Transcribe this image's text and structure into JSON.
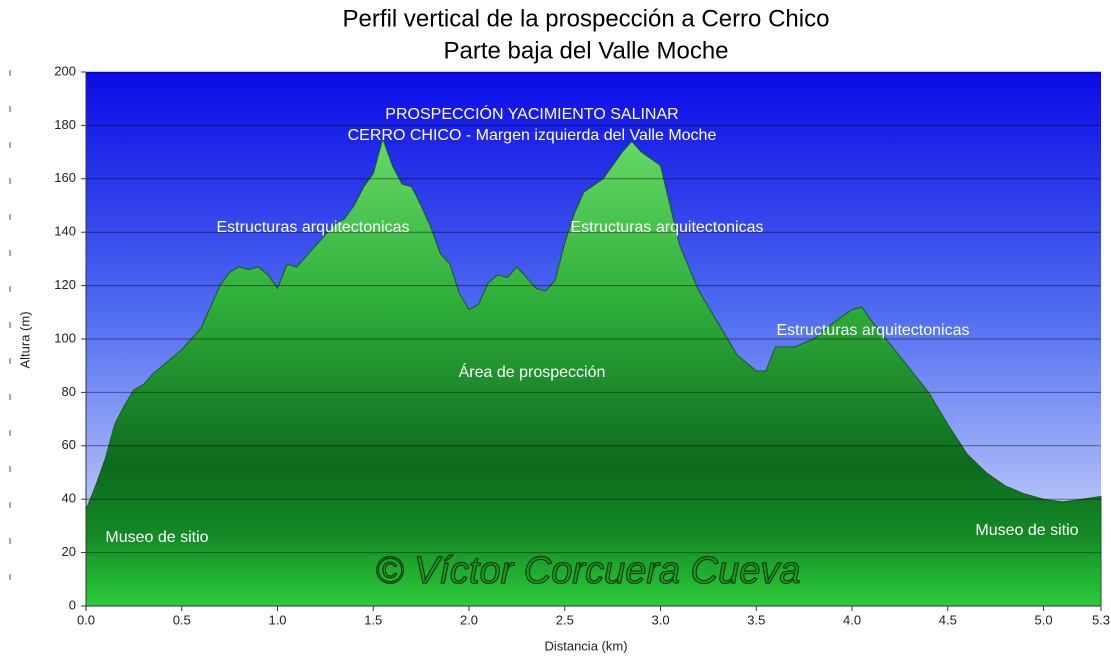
{
  "chart_data": {
    "type": "area",
    "title": "Perfil vertical de la prospección a Cerro Chico",
    "subtitle": "Parte baja del Valle Moche",
    "x_label": "Distancia   (km)",
    "y_label": "Altura (m)",
    "watermark": "© Víctor Corcuera Cueva",
    "annotations": [
      "PROSPECCIÓN YACIMIENTO SALINAR",
      "CERRO CHICO - Margen izquierda del Valle Moche",
      "Estructuras arquitectonicas",
      "Estructuras arquitectonicas",
      "Estructuras arquitectonicas",
      "Área de prospección",
      "Museo de sitio",
      "Museo de sitio"
    ],
    "x": [
      0,
      0.05,
      0.1,
      0.15,
      0.2,
      0.25,
      0.3,
      0.35,
      0.4,
      0.5,
      0.6,
      0.65,
      0.7,
      0.75,
      0.8,
      0.85,
      0.9,
      0.95,
      1.0,
      1.05,
      1.1,
      1.2,
      1.3,
      1.35,
      1.4,
      1.45,
      1.5,
      1.55,
      1.6,
      1.65,
      1.7,
      1.75,
      1.8,
      1.85,
      1.9,
      1.95,
      2.0,
      2.05,
      2.1,
      2.15,
      2.2,
      2.25,
      2.3,
      2.35,
      2.4,
      2.45,
      2.5,
      2.55,
      2.6,
      2.7,
      2.75,
      2.8,
      2.85,
      2.9,
      3.0,
      3.05,
      3.1,
      3.2,
      3.3,
      3.4,
      3.5,
      3.55,
      3.6,
      3.7,
      3.8,
      3.9,
      4.0,
      4.05,
      4.1,
      4.2,
      4.3,
      4.4,
      4.5,
      4.6,
      4.7,
      4.8,
      4.9,
      5.0,
      5.1,
      5.2,
      5.3
    ],
    "values": [
      36,
      45,
      55,
      68,
      75,
      81,
      83,
      87,
      90,
      96,
      104,
      112,
      120,
      125,
      127,
      126,
      127,
      124,
      119,
      128,
      127,
      135,
      143,
      145,
      150,
      157,
      162,
      175,
      165,
      158,
      157,
      150,
      142,
      132,
      128,
      117,
      111,
      113,
      121,
      124,
      123,
      127,
      123,
      119,
      118,
      122,
      136,
      147,
      155,
      160,
      165,
      170,
      174,
      170,
      165,
      150,
      135,
      118,
      106,
      94,
      88,
      88,
      97,
      97,
      100,
      106,
      111,
      112,
      107,
      98,
      89,
      80,
      68,
      57,
      50,
      45,
      42,
      40,
      39,
      40,
      41
    ],
    "color": "#2fae3a",
    "xlim": [
      0,
      5.3
    ],
    "ylim": [
      0,
      200
    ],
    "xticks": [
      {
        "value": 0,
        "label": "0.0"
      },
      0.5,
      {
        "value": 1,
        "label": "1.0"
      },
      1.5,
      {
        "value": 2,
        "label": "2.0"
      },
      2.5,
      {
        "value": 3,
        "label": "3.0"
      },
      3.5,
      {
        "value": 4,
        "label": "4.0"
      },
      4.5,
      {
        "value": 5,
        "label": "5.0"
      },
      5.3
    ],
    "yticks": [
      0,
      20,
      40,
      60,
      80,
      100,
      120,
      140,
      160,
      180,
      200
    ],
    "grid": true
  }
}
